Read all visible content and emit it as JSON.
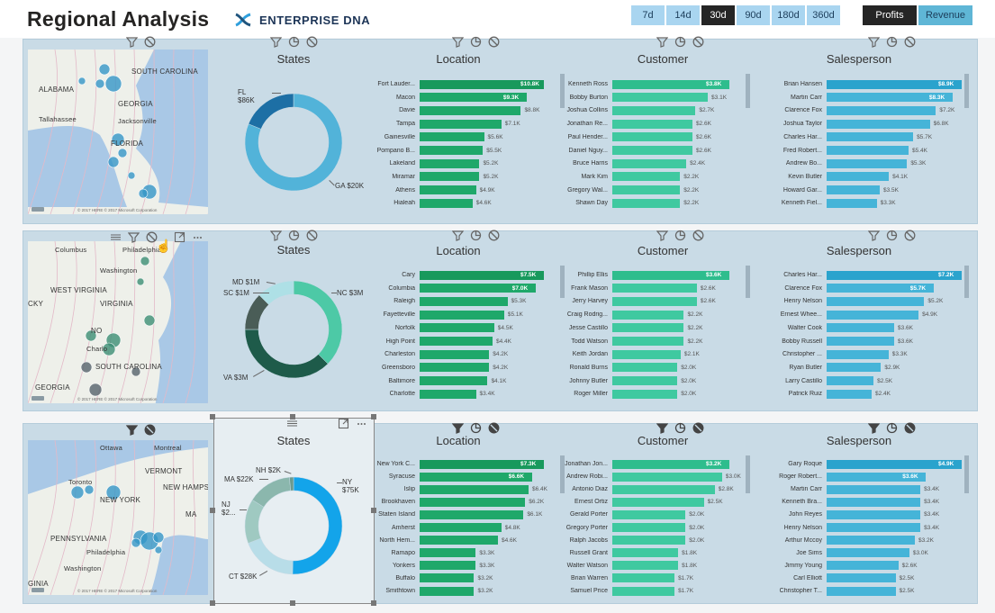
{
  "header": {
    "title": "Regional Analysis",
    "logo_text": "ENTERPRISE DNA",
    "periods": [
      "7d",
      "14d",
      "30d",
      "90d",
      "180d",
      "360d"
    ],
    "active_period": "30d",
    "metrics": [
      "Profits",
      "Revenue"
    ],
    "active_metric": "Profits"
  },
  "panel_titles": {
    "states": "States",
    "location": "Location",
    "customer": "Customer",
    "salesperson": "Salesperson"
  },
  "colors": {
    "location": "#1fa86a",
    "customer": "#3fc9a0",
    "salesperson": "#45b4d8",
    "salesperson_dark": "#2aa3cd",
    "location_top": "#18995c",
    "customer_top": "#2ebd8d"
  },
  "rows": [
    {
      "map_labels": [
        "SOUTH CAROLINA",
        "ALABAMA",
        "GEORGIA",
        "Tallahassee",
        "Jacksonville",
        "FLORIDA"
      ],
      "donut": {
        "slices": [
          {
            "name": "FL",
            "value": 86,
            "label": "FL",
            "sublabel": "$86K",
            "color": "#52b3d9"
          },
          {
            "name": "GA",
            "value": 20,
            "label": "GA $20K",
            "color": "#1d6fa5"
          }
        ]
      },
      "location": [
        [
          "Fort Lauder...",
          10.8,
          "$10.8K"
        ],
        [
          "Macon",
          9.3,
          "$9.3K"
        ],
        [
          "Davie",
          8.8,
          "$8.8K"
        ],
        [
          "Tampa",
          7.1,
          "$7.1K"
        ],
        [
          "Gainesville",
          5.6,
          "$5.6K"
        ],
        [
          "Pompano B...",
          5.5,
          "$5.5K"
        ],
        [
          "Lakeland",
          5.2,
          "$5.2K"
        ],
        [
          "Miramar",
          5.2,
          "$5.2K"
        ],
        [
          "Athens",
          4.9,
          "$4.9K"
        ],
        [
          "Hialeah",
          4.6,
          "$4.6K"
        ]
      ],
      "customer": [
        [
          "Kenneth Ross",
          3.8,
          "$3.8K"
        ],
        [
          "Bobby Burton",
          3.1,
          "$3.1K"
        ],
        [
          "Joshua Collins",
          2.7,
          "$2.7K"
        ],
        [
          "Jonathan Re...",
          2.6,
          "$2.6K"
        ],
        [
          "Paul Hender...",
          2.6,
          "$2.6K"
        ],
        [
          "Daniel Nguy...",
          2.6,
          "$2.6K"
        ],
        [
          "Bruce Harris",
          2.4,
          "$2.4K"
        ],
        [
          "Mark Kim",
          2.2,
          "$2.2K"
        ],
        [
          "Gregory Wal...",
          2.2,
          "$2.2K"
        ],
        [
          "Shawn Day",
          2.2,
          "$2.2K"
        ]
      ],
      "salesperson": [
        [
          "Brian Hansen",
          8.9,
          "$8.9K"
        ],
        [
          "Martin Carr",
          8.3,
          "$8.3K"
        ],
        [
          "Clarence Fox",
          7.2,
          "$7.2K"
        ],
        [
          "Joshua Taylor",
          6.8,
          "$6.8K"
        ],
        [
          "Charles Har...",
          5.7,
          "$5.7K"
        ],
        [
          "Fred Robert...",
          5.4,
          "$5.4K"
        ],
        [
          "Andrew Bo...",
          5.3,
          "$5.3K"
        ],
        [
          "Kevin Butler",
          4.1,
          "$4.1K"
        ],
        [
          "Howard Gar...",
          3.5,
          "$3.5K"
        ],
        [
          "Kenneth Fiel...",
          3.3,
          "$3.3K"
        ]
      ]
    },
    {
      "map_labels": [
        "Columbus",
        "Philadelphia",
        "Washington",
        "WEST VIRGINIA",
        "VIRGINIA",
        "CKY",
        "NO",
        "Charlo",
        "SOUTH CAROLINA",
        "GEORGIA"
      ],
      "donut": {
        "slices": [
          {
            "name": "NC",
            "value": 3,
            "label": "NC $3M",
            "color": "#4dc9a6"
          },
          {
            "name": "VA",
            "value": 3,
            "label": "VA $3M",
            "color": "#1e5b4a"
          },
          {
            "name": "SC",
            "value": 1,
            "label": "SC $1M",
            "color": "#4a5d57"
          },
          {
            "name": "MD",
            "value": 1,
            "label": "MD $1M",
            "color": "#aee0e6"
          }
        ]
      },
      "location": [
        [
          "Cary",
          7.5,
          "$7.5K"
        ],
        [
          "Columbia",
          7.0,
          "$7.0K"
        ],
        [
          "Raleigh",
          5.3,
          "$5.3K"
        ],
        [
          "Fayetteville",
          5.1,
          "$5.1K"
        ],
        [
          "Norfolk",
          4.5,
          "$4.5K"
        ],
        [
          "High Point",
          4.4,
          "$4.4K"
        ],
        [
          "Charleston",
          4.2,
          "$4.2K"
        ],
        [
          "Greensboro",
          4.2,
          "$4.2K"
        ],
        [
          "Baltimore",
          4.1,
          "$4.1K"
        ],
        [
          "Charlotte",
          3.4,
          "$3.4K"
        ]
      ],
      "customer": [
        [
          "Phillip Ellis",
          3.6,
          "$3.6K"
        ],
        [
          "Frank Mason",
          2.6,
          "$2.6K"
        ],
        [
          "Jerry Harvey",
          2.6,
          "$2.6K"
        ],
        [
          "Craig Rodrig...",
          2.2,
          "$2.2K"
        ],
        [
          "Jesse Castillo",
          2.2,
          "$2.2K"
        ],
        [
          "Todd Watson",
          2.2,
          "$2.2K"
        ],
        [
          "Keith Jordan",
          2.1,
          "$2.1K"
        ],
        [
          "Ronald Burns",
          2.0,
          "$2.0K"
        ],
        [
          "Johnny Butler",
          2.0,
          "$2.0K"
        ],
        [
          "Roger Miller",
          2.0,
          "$2.0K"
        ]
      ],
      "salesperson": [
        [
          "Charles Har...",
          7.2,
          "$7.2K"
        ],
        [
          "Clarence Fox",
          5.7,
          "$5.7K"
        ],
        [
          "Henry Nelson",
          5.2,
          "$5.2K"
        ],
        [
          "Ernest Whee...",
          4.9,
          "$4.9K"
        ],
        [
          "Walter Cook",
          3.6,
          "$3.6K"
        ],
        [
          "Bobby Russell",
          3.6,
          "$3.6K"
        ],
        [
          "Christopher ...",
          3.3,
          "$3.3K"
        ],
        [
          "Ryan Butler",
          2.9,
          "$2.9K"
        ],
        [
          "Larry Castillo",
          2.5,
          "$2.5K"
        ],
        [
          "Patrick Ruiz",
          2.4,
          "$2.4K"
        ]
      ]
    },
    {
      "map_labels": [
        "Ottawa",
        "Montreal",
        "VERMONT",
        "Toronto",
        "NEW HAMPSHIRE",
        "NEW YORK",
        "MA",
        "PENNSYLVANIA",
        "Philadelphia",
        "Washington",
        "GINIA"
      ],
      "donut": {
        "slices": [
          {
            "name": "NY",
            "value": 75,
            "label": "NY",
            "sublabel": "$75K",
            "color": "#13a4ea"
          },
          {
            "name": "CT",
            "value": 28,
            "label": "CT $28K",
            "color": "#b8dde8"
          },
          {
            "name": "NJ",
            "value": 22,
            "label": "NJ",
            "sublabel": "$2...",
            "color": "#9fc9c1"
          },
          {
            "name": "MA",
            "value": 22,
            "label": "MA $22K",
            "color": "#8bb7ad"
          },
          {
            "name": "NH",
            "value": 2,
            "label": "NH $2K",
            "color": "#6a9a8f"
          }
        ]
      },
      "location": [
        [
          "New York C...",
          7.3,
          "$7.3K"
        ],
        [
          "Syracuse",
          6.6,
          "$6.6K"
        ],
        [
          "Islip",
          6.4,
          "$6.4K"
        ],
        [
          "Brookhaven",
          6.2,
          "$6.2K"
        ],
        [
          "Staten Island",
          6.1,
          "$6.1K"
        ],
        [
          "Amherst",
          4.8,
          "$4.8K"
        ],
        [
          "North Hem...",
          4.6,
          "$4.6K"
        ],
        [
          "Ramapo",
          3.3,
          "$3.3K"
        ],
        [
          "Yonkers",
          3.3,
          "$3.3K"
        ],
        [
          "Buffalo",
          3.2,
          "$3.2K"
        ],
        [
          "Smithtown",
          3.2,
          "$3.2K"
        ]
      ],
      "customer": [
        [
          "Jonathan Jon...",
          3.2,
          "$3.2K"
        ],
        [
          "Andrew Robi...",
          3.0,
          "$3.0K"
        ],
        [
          "Antonio Diaz",
          2.8,
          "$2.8K"
        ],
        [
          "Ernest Ortiz",
          2.5,
          "$2.5K"
        ],
        [
          "Gerald Porter",
          2.0,
          "$2.0K"
        ],
        [
          "Gregory Porter",
          2.0,
          "$2.0K"
        ],
        [
          "Ralph Jacobs",
          2.0,
          "$2.0K"
        ],
        [
          "Russell Grant",
          1.8,
          "$1.8K"
        ],
        [
          "Walter Watson",
          1.8,
          "$1.8K"
        ],
        [
          "Brian Warren",
          1.7,
          "$1.7K"
        ],
        [
          "Samuel Price",
          1.7,
          "$1.7K"
        ]
      ],
      "salesperson": [
        [
          "Gary Roque",
          4.9,
          "$4.9K"
        ],
        [
          "Roger Robert...",
          3.6,
          "$3.6K"
        ],
        [
          "Martin Carr",
          3.4,
          "$3.4K"
        ],
        [
          "Kenneth Bra...",
          3.4,
          "$3.4K"
        ],
        [
          "John Reyes",
          3.4,
          "$3.4K"
        ],
        [
          "Henry Nelson",
          3.4,
          "$3.4K"
        ],
        [
          "Arthur Mccoy",
          3.2,
          "$3.2K"
        ],
        [
          "Joe Sims",
          3.0,
          "$3.0K"
        ],
        [
          "Jimmy Young",
          2.6,
          "$2.6K"
        ],
        [
          "Carl Elliott",
          2.5,
          "$2.5K"
        ],
        [
          "Christopher T...",
          2.5,
          "$2.5K"
        ]
      ]
    }
  ],
  "map_footer": "© 2017 HERE © 2017 Microsoft Corporation",
  "icon_names": [
    "filter-icon",
    "chart-icon",
    "no-icon",
    "focus-icon",
    "more-icon",
    "drag-icon"
  ]
}
